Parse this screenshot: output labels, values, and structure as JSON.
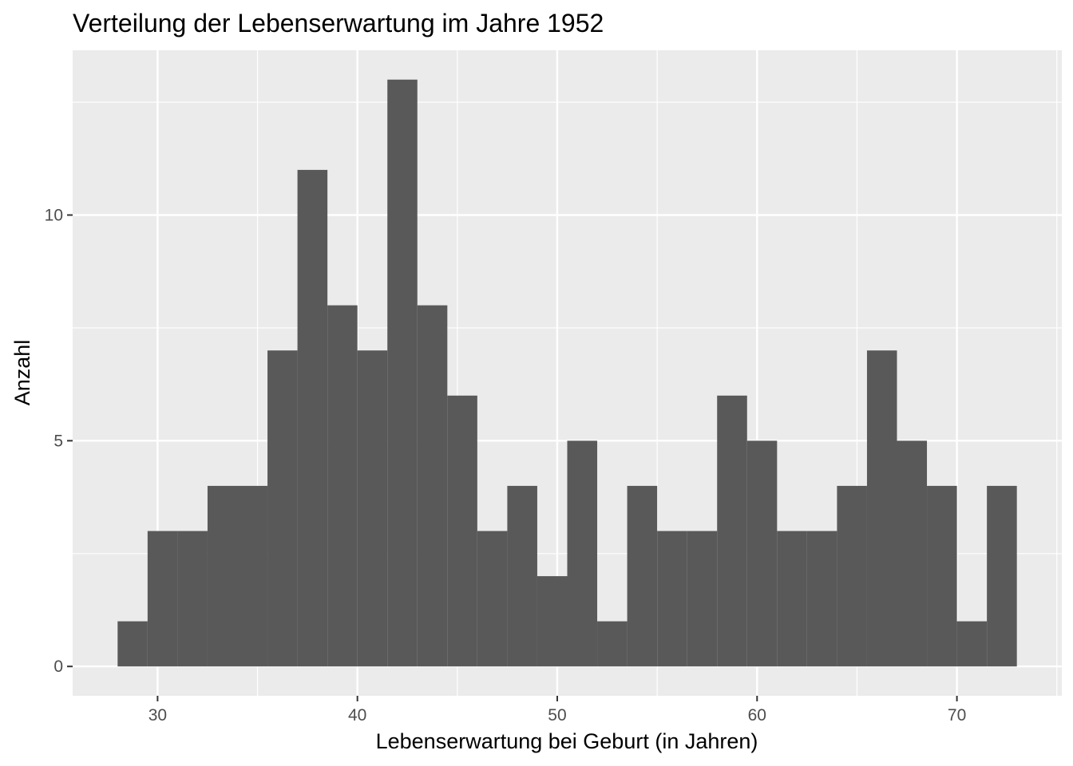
{
  "chart_data": {
    "type": "bar",
    "title": "Verteilung der Lebenserwartung im Jahre 1952",
    "xlabel": "Lebenserwartung bei Geburt (in Jahren)",
    "ylabel": "Anzahl",
    "bin_width": 1.5,
    "bins": [
      {
        "x0": 28.0,
        "x1": 29.5,
        "count": 1
      },
      {
        "x0": 29.5,
        "x1": 31.0,
        "count": 3
      },
      {
        "x0": 31.0,
        "x1": 32.5,
        "count": 3
      },
      {
        "x0": 32.5,
        "x1": 34.0,
        "count": 4
      },
      {
        "x0": 34.0,
        "x1": 35.5,
        "count": 4
      },
      {
        "x0": 35.5,
        "x1": 37.0,
        "count": 7
      },
      {
        "x0": 37.0,
        "x1": 38.5,
        "count": 11
      },
      {
        "x0": 38.5,
        "x1": 40.0,
        "count": 8
      },
      {
        "x0": 40.0,
        "x1": 41.5,
        "count": 7
      },
      {
        "x0": 41.5,
        "x1": 43.0,
        "count": 13
      },
      {
        "x0": 43.0,
        "x1": 44.5,
        "count": 8
      },
      {
        "x0": 44.5,
        "x1": 46.0,
        "count": 6
      },
      {
        "x0": 46.0,
        "x1": 47.5,
        "count": 3
      },
      {
        "x0": 47.5,
        "x1": 49.0,
        "count": 4
      },
      {
        "x0": 49.0,
        "x1": 50.5,
        "count": 2
      },
      {
        "x0": 50.5,
        "x1": 52.0,
        "count": 5
      },
      {
        "x0": 52.0,
        "x1": 53.5,
        "count": 1
      },
      {
        "x0": 53.5,
        "x1": 55.0,
        "count": 4
      },
      {
        "x0": 55.0,
        "x1": 56.5,
        "count": 3
      },
      {
        "x0": 56.5,
        "x1": 58.0,
        "count": 3
      },
      {
        "x0": 58.0,
        "x1": 59.5,
        "count": 6
      },
      {
        "x0": 59.5,
        "x1": 61.0,
        "count": 5
      },
      {
        "x0": 61.0,
        "x1": 62.5,
        "count": 3
      },
      {
        "x0": 62.5,
        "x1": 64.0,
        "count": 3
      },
      {
        "x0": 64.0,
        "x1": 65.5,
        "count": 4
      },
      {
        "x0": 65.5,
        "x1": 67.0,
        "count": 7
      },
      {
        "x0": 67.0,
        "x1": 68.5,
        "count": 5
      },
      {
        "x0": 68.5,
        "x1": 70.0,
        "count": 4
      },
      {
        "x0": 70.0,
        "x1": 71.5,
        "count": 1
      },
      {
        "x0": 71.5,
        "x1": 73.0,
        "count": 4
      }
    ],
    "xlim": [
      25.75,
      75.25
    ],
    "ylim": [
      -0.65,
      13.65
    ],
    "x_ticks": [
      30,
      40,
      50,
      60,
      70
    ],
    "x_tick_labels": [
      "30",
      "40",
      "50",
      "60",
      "70"
    ],
    "y_ticks": [
      0,
      5,
      10
    ],
    "y_tick_labels": [
      "0",
      "5",
      "10"
    ],
    "grid": true,
    "legend": "none",
    "colors": {
      "bar": "#595959",
      "panel": "#ebebeb",
      "grid": "#ffffff"
    }
  }
}
